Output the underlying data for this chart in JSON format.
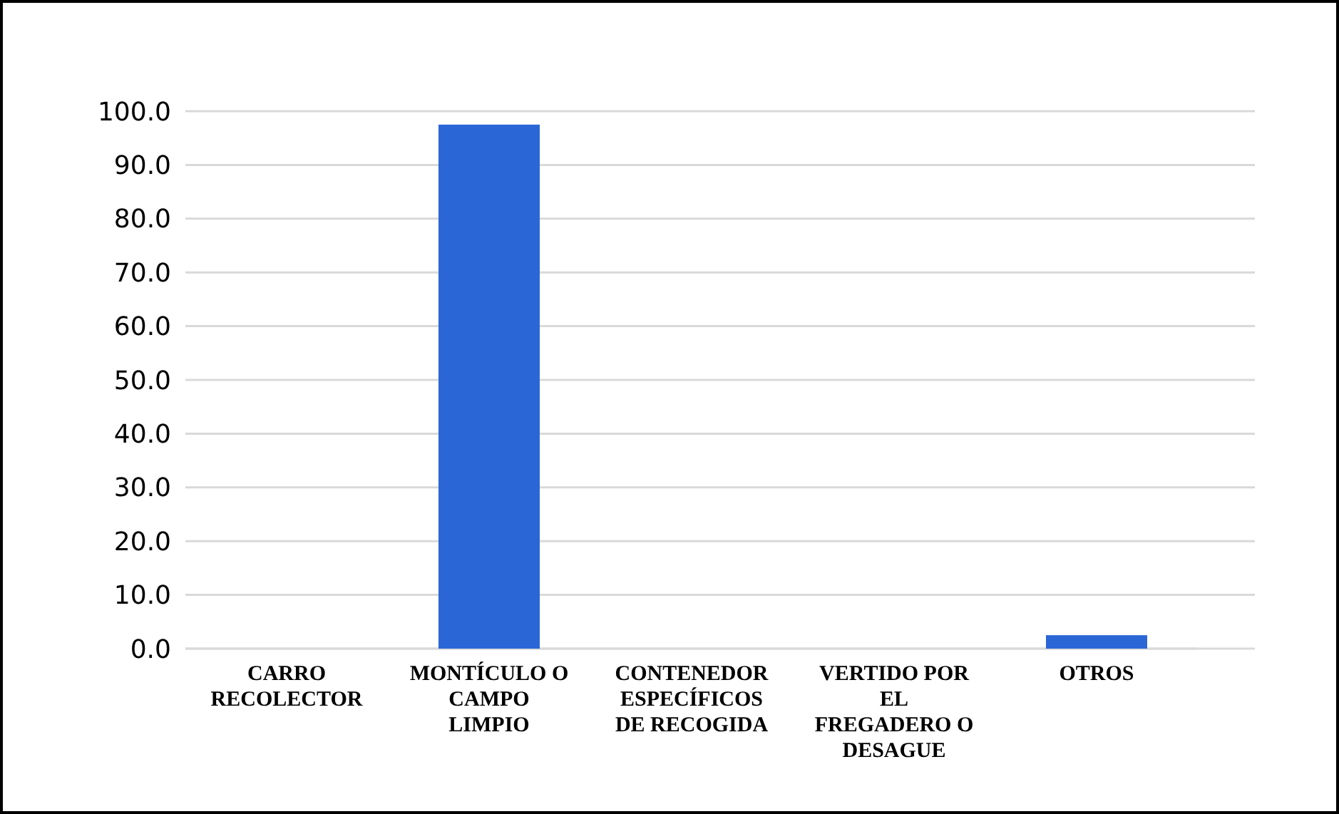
{
  "chart_data": {
    "type": "bar",
    "categories": [
      "CARRO RECOLECTOR",
      "MONTÍCULO O CAMPO LIMPIO",
      "CONTENEDOR ESPECÍFICOS DE RECOGIDA",
      "VERTIDO POR EL FREGADERO O DESAGUE",
      "OTROS"
    ],
    "values": [
      0,
      97.5,
      0,
      0,
      2.5
    ],
    "colors": [
      "#1d3b72",
      "#2a66d6",
      "#1d3b72",
      "#1d3b72",
      "#2a66d6"
    ],
    "ylim": [
      0,
      100
    ],
    "yticks": [
      {
        "value": 0,
        "label": "0.0"
      },
      {
        "value": 10,
        "label": "10.0"
      },
      {
        "value": 20,
        "label": "20.0"
      },
      {
        "value": 30,
        "label": "30.0"
      },
      {
        "value": 40,
        "label": "40.0"
      },
      {
        "value": 50,
        "label": "50.0"
      },
      {
        "value": 60,
        "label": "60.0"
      },
      {
        "value": 70,
        "label": "70.0"
      },
      {
        "value": 80,
        "label": "80.0"
      },
      {
        "value": 90,
        "label": "90.0"
      },
      {
        "value": 100,
        "label": "100.0"
      }
    ],
    "grid": "y"
  }
}
